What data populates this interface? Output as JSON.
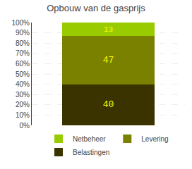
{
  "chart_data": {
    "type": "bar",
    "title": "Opbouw van de gasprijs",
    "categories": [
      null
    ],
    "series": [
      {
        "name": "Belastingen",
        "color": "#3a3300",
        "values": [
          40
        ]
      },
      {
        "name": "Levering",
        "color": "#7a8000",
        "values": [
          47
        ]
      },
      {
        "name": "Netbeheer",
        "color": "#99cc00",
        "values": [
          13
        ]
      }
    ],
    "stacked": true,
    "data_labels": true,
    "ylim": [
      0,
      100
    ],
    "yticks": [
      {
        "value": 0,
        "label": "0%"
      },
      {
        "value": 10,
        "label": "10%"
      },
      {
        "value": 20,
        "label": "20%"
      },
      {
        "value": 30,
        "label": "30%"
      },
      {
        "value": 40,
        "label": "40%"
      },
      {
        "value": 50,
        "label": "50%"
      },
      {
        "value": 60,
        "label": "60%"
      },
      {
        "value": 70,
        "label": "70%"
      },
      {
        "value": 80,
        "label": "80%"
      },
      {
        "value": 90,
        "label": "90%"
      },
      {
        "value": 100,
        "label": "100%"
      }
    ],
    "grid": true,
    "legend": "bottom",
    "tick_labels": "y"
  }
}
